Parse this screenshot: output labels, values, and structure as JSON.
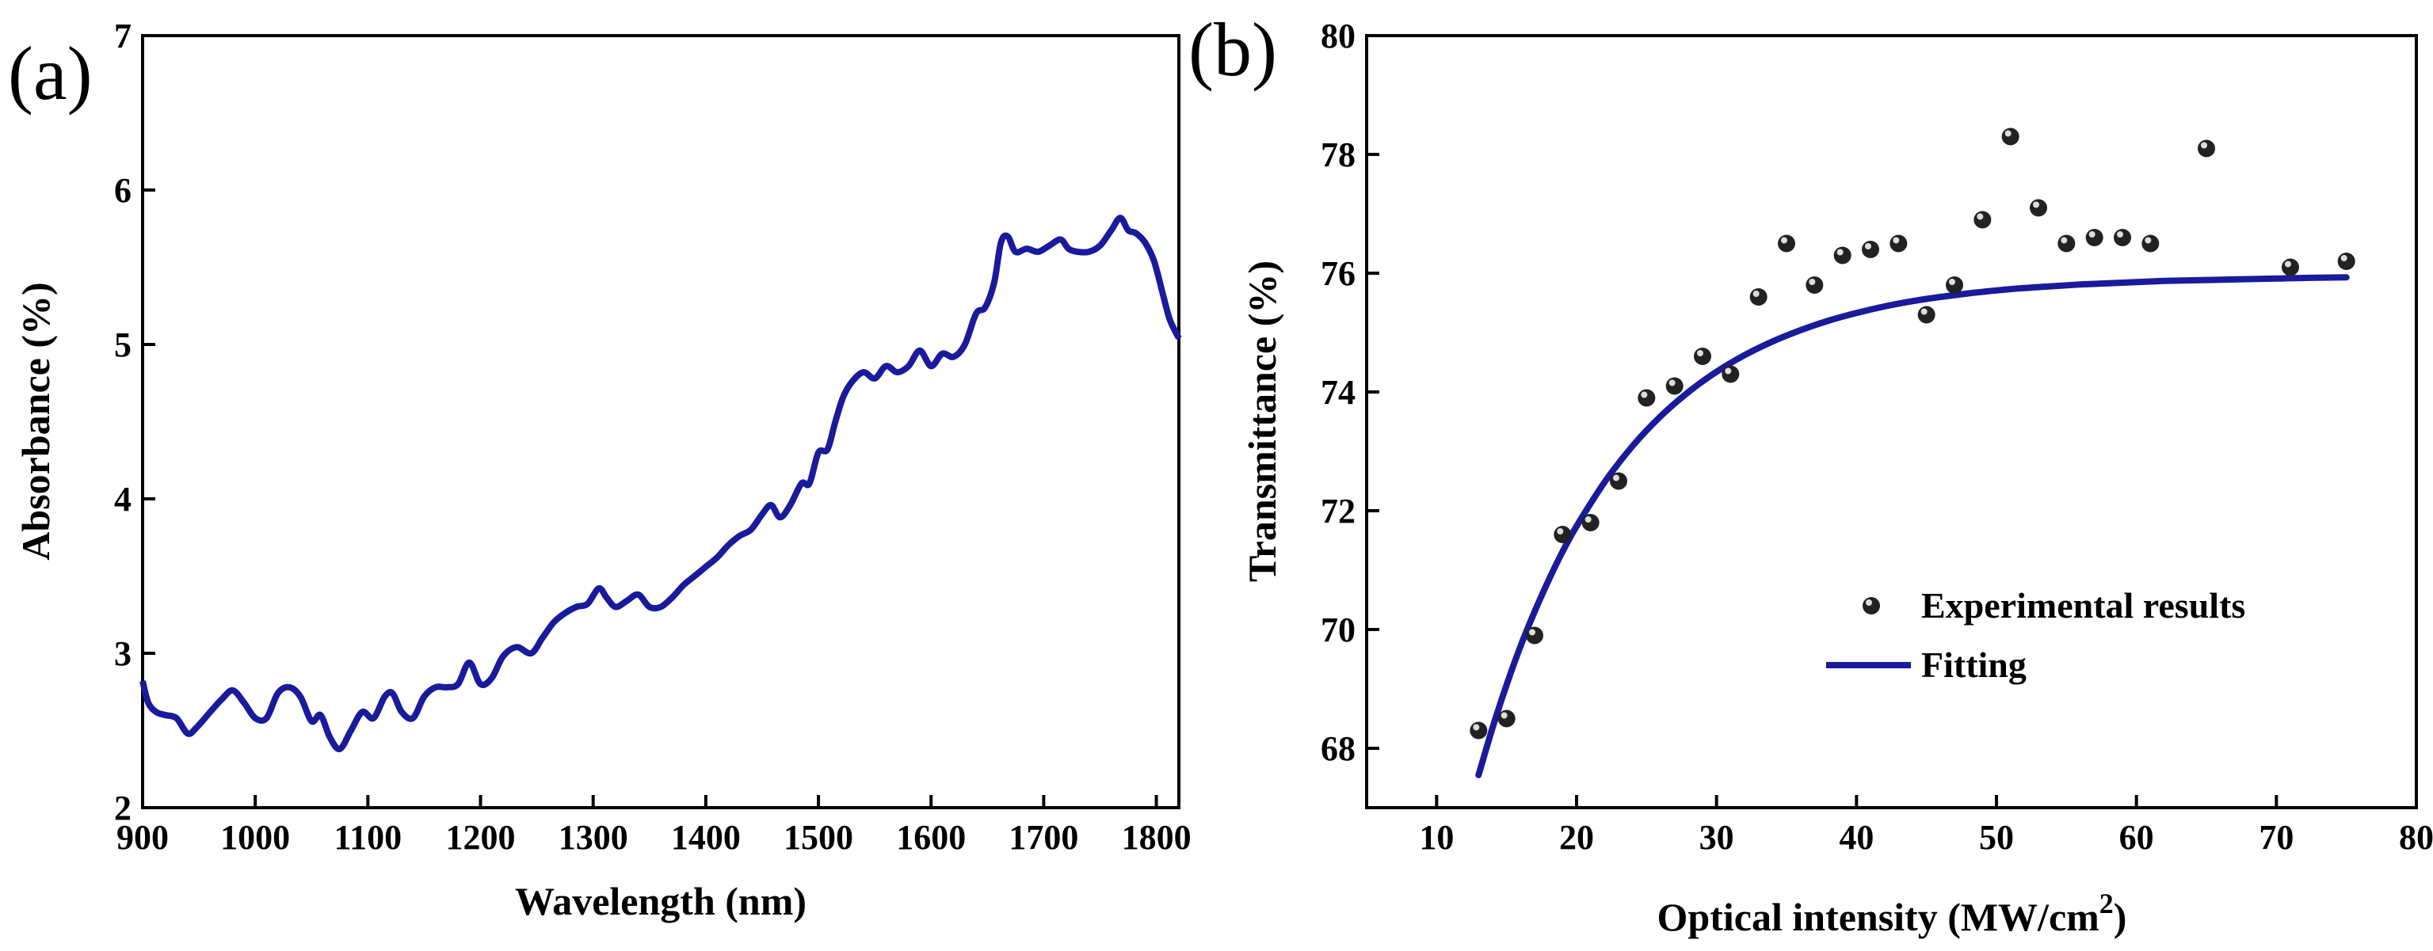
{
  "chart_data": [
    {
      "panel_label": "(a)",
      "type": "line",
      "title": "",
      "xlabel": "Wavelength (nm)",
      "ylabel": "Absorbance (%)",
      "xlim": [
        900,
        1820
      ],
      "ylim": [
        2,
        7
      ],
      "xticks": [
        900,
        1000,
        1100,
        1200,
        1300,
        1400,
        1500,
        1600,
        1700,
        1800
      ],
      "yticks": [
        2,
        3,
        4,
        5,
        6,
        7
      ],
      "line_color": "#1a1a9c",
      "series": [
        {
          "name": "Absorbance",
          "x": [
            900,
            905,
            912,
            920,
            930,
            940,
            948,
            960,
            970,
            980,
            990,
            1000,
            1010,
            1020,
            1030,
            1040,
            1050,
            1058,
            1066,
            1075,
            1085,
            1095,
            1105,
            1115,
            1122,
            1130,
            1140,
            1150,
            1160,
            1170,
            1180,
            1190,
            1200,
            1210,
            1220,
            1232,
            1245,
            1255,
            1265,
            1275,
            1285,
            1295,
            1305,
            1312,
            1320,
            1330,
            1340,
            1350,
            1360,
            1370,
            1380,
            1390,
            1400,
            1410,
            1420,
            1430,
            1440,
            1450,
            1458,
            1466,
            1475,
            1485,
            1492,
            1500,
            1508,
            1515,
            1522,
            1530,
            1540,
            1550,
            1560,
            1570,
            1580,
            1590,
            1600,
            1610,
            1620,
            1630,
            1640,
            1648,
            1656,
            1662,
            1668,
            1675,
            1685,
            1695,
            1705,
            1715,
            1722,
            1730,
            1740,
            1750,
            1760,
            1768,
            1775,
            1782,
            1790,
            1798,
            1806,
            1812,
            1820
          ],
          "values": [
            2.82,
            2.68,
            2.62,
            2.6,
            2.58,
            2.48,
            2.52,
            2.62,
            2.7,
            2.76,
            2.68,
            2.58,
            2.58,
            2.74,
            2.78,
            2.72,
            2.56,
            2.6,
            2.46,
            2.38,
            2.5,
            2.62,
            2.58,
            2.72,
            2.74,
            2.62,
            2.58,
            2.72,
            2.78,
            2.78,
            2.8,
            2.94,
            2.8,
            2.84,
            2.98,
            3.04,
            3.0,
            3.1,
            3.2,
            3.26,
            3.3,
            3.32,
            3.42,
            3.36,
            3.3,
            3.34,
            3.38,
            3.3,
            3.3,
            3.36,
            3.44,
            3.5,
            3.56,
            3.62,
            3.7,
            3.76,
            3.8,
            3.9,
            3.96,
            3.88,
            3.96,
            4.1,
            4.1,
            4.3,
            4.32,
            4.5,
            4.66,
            4.76,
            4.82,
            4.78,
            4.86,
            4.82,
            4.86,
            4.96,
            4.86,
            4.94,
            4.92,
            5.0,
            5.2,
            5.24,
            5.4,
            5.66,
            5.7,
            5.6,
            5.62,
            5.6,
            5.64,
            5.68,
            5.62,
            5.6,
            5.6,
            5.64,
            5.74,
            5.82,
            5.74,
            5.72,
            5.66,
            5.54,
            5.32,
            5.16,
            5.04
          ]
        }
      ]
    },
    {
      "panel_label": "(b)",
      "type": "scatter",
      "title": "",
      "xlabel": "Optical intensity (MW/cm",
      "xlabel_superscript": "2",
      "xlabel_suffix": ")",
      "ylabel": "Transmittance (%)",
      "xlim": [
        5,
        80
      ],
      "ylim": [
        67,
        80
      ],
      "xticks": [
        10,
        20,
        30,
        40,
        50,
        60,
        70,
        80
      ],
      "yticks": [
        68,
        70,
        72,
        74,
        76,
        78,
        80
      ],
      "legend_placement": "center-right",
      "line_color": "#1a1a9c",
      "series": [
        {
          "name": "Experimental results",
          "kind": "scatter",
          "x": [
            13,
            15,
            17,
            19,
            21,
            23,
            25,
            27,
            29,
            31,
            33,
            35,
            37,
            39,
            41,
            43,
            45,
            47,
            49,
            51,
            53,
            55,
            57,
            59,
            61,
            65,
            71,
            75
          ],
          "values": [
            68.3,
            68.5,
            69.9,
            71.6,
            71.8,
            72.5,
            73.9,
            74.1,
            74.6,
            74.3,
            75.6,
            76.5,
            75.8,
            76.3,
            76.4,
            76.5,
            75.3,
            75.8,
            76.9,
            78.3,
            77.1,
            76.5,
            76.6,
            76.6,
            76.5,
            78.1,
            76.1,
            76.2
          ]
        },
        {
          "name": "Fitting",
          "kind": "line",
          "x": [
            13,
            14,
            15,
            16,
            17,
            18,
            19,
            20,
            22,
            24,
            26,
            28,
            30,
            32,
            34,
            36,
            38,
            40,
            42,
            44,
            46,
            48,
            50,
            52,
            54,
            56,
            58,
            60,
            62,
            64,
            66,
            68,
            70,
            72,
            75
          ],
          "values": [
            67.55,
            68.35,
            69.07,
            69.72,
            70.3,
            70.83,
            71.31,
            71.74,
            72.48,
            73.09,
            73.59,
            74.0,
            74.34,
            74.62,
            74.85,
            75.04,
            75.2,
            75.33,
            75.44,
            75.53,
            75.6,
            75.66,
            75.71,
            75.75,
            75.78,
            75.81,
            75.83,
            75.85,
            75.87,
            75.88,
            75.89,
            75.9,
            75.91,
            75.92,
            75.93
          ]
        }
      ]
    }
  ]
}
